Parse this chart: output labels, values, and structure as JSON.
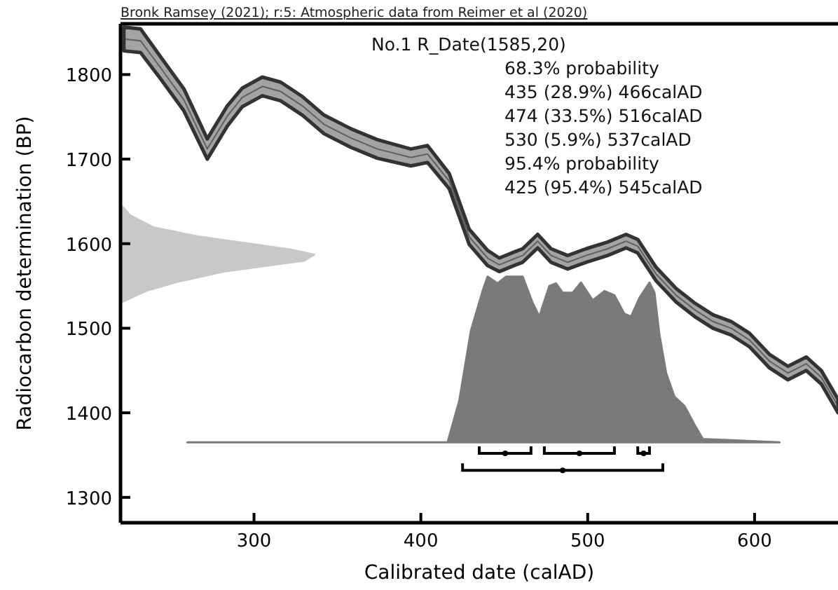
{
  "chart_data": {
    "type": "line",
    "title": "Bronk Ramsey (2021); r:5: Atmospheric data from Reimer et al (2020)",
    "xlabel": "Calibrated date (calAD)",
    "ylabel": "Radiocarbon determination (BP)",
    "xlim": [
      220,
      650
    ],
    "xticks": [
      300,
      400,
      500,
      600
    ],
    "ylim": [
      1270,
      1860
    ],
    "yticks": [
      1300,
      1400,
      1500,
      1600,
      1700,
      1800
    ],
    "annotations": [
      "No.1 R_Date(1585,20)",
      "68.3% probability",
      "435 (28.9%) 466calAD",
      "474 (33.5%) 516calAD",
      "530 (5.9%) 537calAD",
      "95.4% probability",
      "425 (95.4%) 545calAD"
    ],
    "series": [
      {
        "color": "#333333",
        "x": [
          222,
          232,
          244,
          258,
          272,
          284,
          293,
          305,
          316,
          329,
          342,
          358,
          374,
          394,
          404,
          417,
          429,
          440,
          447,
          457,
          461,
          470,
          478,
          488,
          499,
          512,
          523,
          530,
          541,
          553,
          564,
          575,
          586,
          597,
          609,
          620,
          631,
          640,
          650
        ],
        "values": [
          1842,
          1840,
          1808,
          1770,
          1712,
          1751,
          1773,
          1786,
          1780,
          1763,
          1741,
          1725,
          1712,
          1702,
          1706,
          1674,
          1608,
          1583,
          1575,
          1583,
          1586,
          1603,
          1586,
          1578,
          1586,
          1594,
          1603,
          1597,
          1564,
          1539,
          1522,
          1508,
          1500,
          1486,
          1461,
          1447,
          1458,
          1442,
          1408
        ],
        "lower": [
          1828,
          1826,
          1795,
          1757,
          1700,
          1739,
          1762,
          1775,
          1769,
          1752,
          1730,
          1714,
          1701,
          1692,
          1696,
          1665,
          1599,
          1574,
          1567,
          1575,
          1578,
          1595,
          1578,
          1570,
          1578,
          1586,
          1595,
          1589,
          1556,
          1531,
          1514,
          1500,
          1492,
          1478,
          1453,
          1439,
          1450,
          1434,
          1400
        ],
        "upper": [
          1856,
          1854,
          1821,
          1783,
          1724,
          1763,
          1784,
          1797,
          1791,
          1774,
          1752,
          1736,
          1723,
          1712,
          1716,
          1683,
          1617,
          1592,
          1583,
          1591,
          1594,
          1611,
          1594,
          1586,
          1594,
          1602,
          1611,
          1605,
          1572,
          1547,
          1530,
          1516,
          1508,
          1494,
          1469,
          1455,
          1466,
          1450,
          1416
        ]
      },
      {
        "type": "area",
        "color": "#c8c8c8",
        "x": [
          220,
          222,
          226,
          240,
          268,
          297,
          322,
          336,
          330,
          311,
          282,
          254,
          235,
          223,
          220
        ],
        "values": [
          1645,
          1642,
          1633,
          1619,
          1608,
          1600,
          1593,
          1587,
          1580,
          1575,
          1567,
          1555,
          1544,
          1533,
          1530
        ]
      },
      {
        "type": "area",
        "color": "#7a7a7a",
        "x": [
          260,
          416,
          423,
          430,
          437,
          440,
          446,
          451,
          461,
          467,
          471,
          477,
          481,
          485,
          491,
          496,
          503,
          510,
          516,
          522,
          526,
          531,
          537,
          540,
          543,
          547,
          552,
          558,
          564,
          569,
          615
        ],
        "values": [
          1365,
          1365,
          1414,
          1497,
          1544,
          1561,
          1553,
          1561,
          1561,
          1530,
          1514,
          1550,
          1553,
          1542,
          1542,
          1554,
          1533,
          1544,
          1539,
          1517,
          1514,
          1536,
          1554,
          1542,
          1492,
          1447,
          1419,
          1408,
          1386,
          1369,
          1365
        ]
      },
      {
        "type": "scatter",
        "color": "#000000",
        "x": [
          450.5,
          495,
          533.5,
          485
        ],
        "values": [
          1352,
          1352,
          1352,
          1332
        ],
        "xerrors": [
          [
            435,
            466
          ],
          [
            474,
            516
          ],
          [
            530,
            537
          ],
          [
            425,
            545
          ]
        ]
      }
    ],
    "grid": false
  }
}
